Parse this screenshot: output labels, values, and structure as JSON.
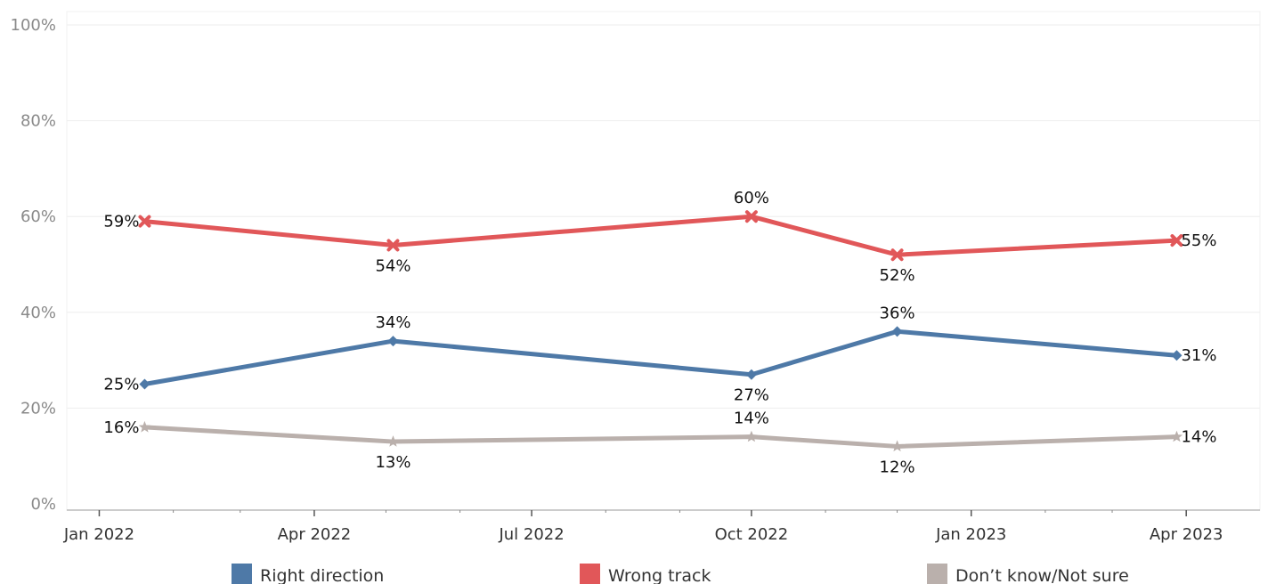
{
  "chart_data": {
    "type": "line",
    "title": "",
    "xlabel": "",
    "ylabel": "",
    "ylim": [
      0,
      100
    ],
    "y_ticks": [
      "0%",
      "20%",
      "40%",
      "60%",
      "80%",
      "100%"
    ],
    "y_tick_values": [
      0,
      20,
      40,
      60,
      80,
      100
    ],
    "x_range": [
      "2021-12-24",
      "2023-04-30"
    ],
    "x_ticks": [
      {
        "label": "Jan 2022",
        "date": "2022-01-01"
      },
      {
        "label": "Apr 2022",
        "date": "2022-04-01"
      },
      {
        "label": "Jul 2022",
        "date": "2022-07-01"
      },
      {
        "label": "Oct 2022",
        "date": "2022-10-01"
      },
      {
        "label": "Jan 2023",
        "date": "2023-01-01"
      },
      {
        "label": "Apr 2023",
        "date": "2023-04-01"
      }
    ],
    "x_minor_ticks": [
      "2022-02-01",
      "2022-03-01",
      "2022-05-01",
      "2022-06-01",
      "2022-08-01",
      "2022-09-01",
      "2022-11-01",
      "2022-12-01",
      "2023-02-01",
      "2023-03-01"
    ],
    "x": [
      "2022-01-20",
      "2022-05-04",
      "2022-10-01",
      "2022-12-01",
      "2023-03-28"
    ],
    "series": [
      {
        "name": "Right direction",
        "color": "#4e79a7",
        "marker": "diamond",
        "values": [
          25,
          34,
          27,
          36,
          31
        ],
        "labels": [
          "25%",
          "34%",
          "27%",
          "36%",
          "31%"
        ],
        "label_positions": [
          "left",
          "above",
          "below",
          "above",
          "right"
        ]
      },
      {
        "name": "Wrong track",
        "color": "#e15759",
        "marker": "x",
        "values": [
          59,
          54,
          60,
          52,
          55
        ],
        "labels": [
          "59%",
          "54%",
          "60%",
          "52%",
          "55%"
        ],
        "label_positions": [
          "left",
          "below",
          "above",
          "below",
          "right"
        ]
      },
      {
        "name": "Don’t know/Not sure",
        "color": "#bab0ac",
        "marker": "star",
        "values": [
          16,
          13,
          14,
          12,
          14
        ],
        "labels": [
          "16%",
          "13%",
          "14%",
          "12%",
          "14%"
        ],
        "label_positions": [
          "left",
          "below",
          "above",
          "below",
          "right"
        ]
      }
    ],
    "grid": true,
    "legend_position": "bottom"
  }
}
